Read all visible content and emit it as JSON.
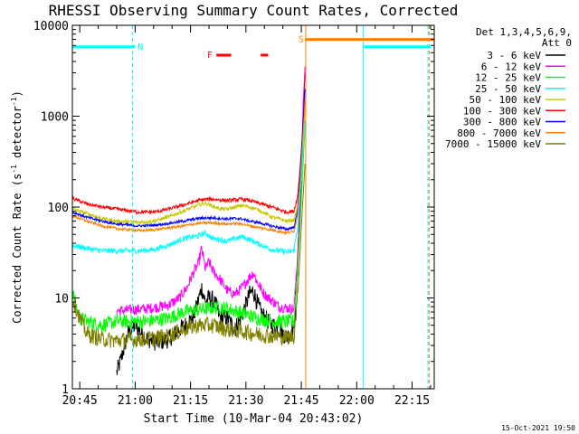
{
  "chart_data": {
    "type": "line",
    "title": "RHESSI Observing Summary Count Rates, Corrected",
    "xlabel": "Start Time (10-Mar-04 20:43:02)",
    "ylabel_main": "Corrected Count Rate (s",
    "ylabel_sup1": "-1",
    "ylabel_mid": " detector",
    "ylabel_sup2": "-1",
    "ylabel_end": ")",
    "timestamp": "15-Oct-2021 19:50",
    "detector_text": [
      "Det 1,3,4,5,6,9,",
      "Att 0"
    ],
    "yscale": "log",
    "ylim": [
      1,
      10000
    ],
    "xlim_minutes": [
      0,
      98
    ],
    "x_ticks": [
      {
        "label": "20:45",
        "min": 2
      },
      {
        "label": "21:00",
        "min": 17
      },
      {
        "label": "21:15",
        "min": 32
      },
      {
        "label": "21:30",
        "min": 47
      },
      {
        "label": "21:45",
        "min": 62
      },
      {
        "label": "22:00",
        "min": 77
      },
      {
        "label": "22:15",
        "min": 92
      }
    ],
    "y_ticks": [
      {
        "label": "10000",
        "v": 10000
      },
      {
        "label": "1000",
        "v": 1000
      },
      {
        "label": "100",
        "v": 100
      },
      {
        "label": "10",
        "v": 10
      },
      {
        "label": "1",
        "v": 1
      }
    ],
    "series": [
      {
        "name": "3 - 6 keV",
        "color": "#000000",
        "noise": 0.1,
        "start": 12,
        "points": [
          [
            12,
            1.5
          ],
          [
            13,
            2
          ],
          [
            15,
            4
          ],
          [
            17,
            5
          ],
          [
            20,
            3.6
          ],
          [
            23,
            3.2
          ],
          [
            26,
            3.5
          ],
          [
            29,
            4.5
          ],
          [
            31,
            5.2
          ],
          [
            33,
            6.5
          ],
          [
            34,
            9
          ],
          [
            35,
            13
          ],
          [
            36,
            9
          ],
          [
            37,
            10
          ],
          [
            38,
            9.5
          ],
          [
            39,
            8
          ],
          [
            40,
            6
          ],
          [
            42,
            6
          ],
          [
            44,
            4.5
          ],
          [
            46,
            6.5
          ],
          [
            48,
            11
          ],
          [
            49,
            12
          ],
          [
            50,
            9
          ],
          [
            51,
            7
          ],
          [
            53,
            5.5
          ],
          [
            56,
            4.5
          ],
          [
            58,
            3.7
          ],
          [
            60,
            4.5
          ],
          [
            61,
            20
          ],
          [
            62,
            180
          ],
          [
            62.5,
            1200
          ],
          [
            63,
            3000
          ]
        ]
      },
      {
        "name": "6 - 12 keV",
        "color": "#ff00ff",
        "noise": 0.06,
        "start": 12,
        "points": [
          [
            12,
            7.2
          ],
          [
            20,
            7.6
          ],
          [
            26,
            8.3
          ],
          [
            29,
            10
          ],
          [
            31,
            13
          ],
          [
            33,
            20
          ],
          [
            34,
            23
          ],
          [
            35,
            35
          ],
          [
            36,
            21
          ],
          [
            37,
            25
          ],
          [
            38,
            20
          ],
          [
            40,
            16
          ],
          [
            42,
            12
          ],
          [
            44,
            11
          ],
          [
            46,
            13
          ],
          [
            48,
            17
          ],
          [
            49,
            19
          ],
          [
            50,
            15
          ],
          [
            52,
            11
          ],
          [
            56,
            8
          ],
          [
            60,
            7.5
          ],
          [
            61,
            30
          ],
          [
            62,
            250
          ],
          [
            62.5,
            1400
          ],
          [
            63,
            3500
          ]
        ]
      },
      {
        "name": "12 - 25 keV",
        "color": "#00ff00",
        "noise": 0.08,
        "start": 0,
        "points": [
          [
            0,
            12
          ],
          [
            1,
            8
          ],
          [
            2,
            6
          ],
          [
            4,
            5.5
          ],
          [
            8,
            5
          ],
          [
            12,
            5.5
          ],
          [
            20,
            5.5
          ],
          [
            26,
            6
          ],
          [
            30,
            7
          ],
          [
            35,
            7.5
          ],
          [
            40,
            8
          ],
          [
            45,
            7
          ],
          [
            50,
            6
          ],
          [
            55,
            5.5
          ],
          [
            60,
            5.5
          ],
          [
            61,
            20
          ],
          [
            62,
            120
          ],
          [
            63,
            800
          ]
        ]
      },
      {
        "name": "25 - 50 keV",
        "color": "#00ffff",
        "noise": 0.03,
        "start": 0,
        "points": [
          [
            0,
            38
          ],
          [
            4,
            35
          ],
          [
            8,
            33
          ],
          [
            12,
            33
          ],
          [
            18,
            33
          ],
          [
            22,
            34
          ],
          [
            26,
            38
          ],
          [
            30,
            45
          ],
          [
            34,
            48
          ],
          [
            36,
            52
          ],
          [
            38,
            45
          ],
          [
            40,
            44
          ],
          [
            42,
            42
          ],
          [
            44,
            45
          ],
          [
            46,
            47
          ],
          [
            48,
            44
          ],
          [
            50,
            40
          ],
          [
            54,
            34
          ],
          [
            58,
            32
          ],
          [
            60,
            33
          ],
          [
            61,
            60
          ],
          [
            62,
            200
          ],
          [
            63,
            900
          ]
        ]
      },
      {
        "name": "50 - 100 keV",
        "color": "#c8c800",
        "noise": 0.02,
        "start": 0,
        "points": [
          [
            0,
            95
          ],
          [
            4,
            85
          ],
          [
            8,
            75
          ],
          [
            12,
            70
          ],
          [
            18,
            68
          ],
          [
            22,
            70
          ],
          [
            26,
            78
          ],
          [
            30,
            90
          ],
          [
            34,
            105
          ],
          [
            36,
            110
          ],
          [
            38,
            102
          ],
          [
            40,
            96
          ],
          [
            42,
            95
          ],
          [
            44,
            100
          ],
          [
            46,
            104
          ],
          [
            48,
            100
          ],
          [
            50,
            95
          ],
          [
            54,
            78
          ],
          [
            58,
            70
          ],
          [
            60,
            72
          ],
          [
            61,
            100
          ],
          [
            62,
            300
          ],
          [
            63,
            1200
          ]
        ]
      },
      {
        "name": "100 - 300 keV",
        "color": "#ff0000",
        "noise": 0.02,
        "start": 0,
        "points": [
          [
            0,
            125
          ],
          [
            4,
            108
          ],
          [
            8,
            100
          ],
          [
            12,
            95
          ],
          [
            18,
            88
          ],
          [
            22,
            88
          ],
          [
            26,
            95
          ],
          [
            30,
            105
          ],
          [
            34,
            118
          ],
          [
            36,
            122
          ],
          [
            38,
            122
          ],
          [
            40,
            120
          ],
          [
            42,
            118
          ],
          [
            44,
            120
          ],
          [
            46,
            122
          ],
          [
            48,
            118
          ],
          [
            50,
            112
          ],
          [
            54,
            100
          ],
          [
            58,
            88
          ],
          [
            60,
            90
          ],
          [
            61,
            130
          ],
          [
            62,
            400
          ],
          [
            63,
            1500
          ]
        ]
      },
      {
        "name": "300 - 800 keV",
        "color": "#0000ff",
        "noise": 0.015,
        "start": 0,
        "points": [
          [
            0,
            88
          ],
          [
            4,
            77
          ],
          [
            8,
            70
          ],
          [
            12,
            65
          ],
          [
            18,
            62
          ],
          [
            22,
            63
          ],
          [
            26,
            66
          ],
          [
            30,
            70
          ],
          [
            34,
            75
          ],
          [
            36,
            76
          ],
          [
            38,
            76
          ],
          [
            40,
            75
          ],
          [
            42,
            74
          ],
          [
            44,
            75
          ],
          [
            46,
            74
          ],
          [
            48,
            70
          ],
          [
            50,
            68
          ],
          [
            54,
            62
          ],
          [
            58,
            57
          ],
          [
            60,
            60
          ],
          [
            61,
            90
          ],
          [
            62,
            400
          ],
          [
            63,
            2000
          ]
        ]
      },
      {
        "name": "800 - 7000 keV",
        "color": "#ff8000",
        "noise": 0.015,
        "start": 0,
        "points": [
          [
            0,
            80
          ],
          [
            4,
            70
          ],
          [
            8,
            62
          ],
          [
            12,
            58
          ],
          [
            18,
            55
          ],
          [
            22,
            56
          ],
          [
            26,
            59
          ],
          [
            30,
            62
          ],
          [
            34,
            66
          ],
          [
            36,
            67
          ],
          [
            38,
            67
          ],
          [
            40,
            66
          ],
          [
            42,
            65
          ],
          [
            44,
            66
          ],
          [
            46,
            65
          ],
          [
            48,
            62
          ],
          [
            50,
            60
          ],
          [
            54,
            56
          ],
          [
            58,
            52
          ],
          [
            60,
            54
          ],
          [
            61,
            80
          ],
          [
            62,
            300
          ],
          [
            63,
            1500
          ]
        ]
      },
      {
        "name": "7000 - 15000 keV",
        "color": "#808000",
        "noise": 0.09,
        "start": 0,
        "points": [
          [
            0,
            10
          ],
          [
            2,
            6
          ],
          [
            4,
            4
          ],
          [
            8,
            3.5
          ],
          [
            12,
            3.4
          ],
          [
            18,
            3.5
          ],
          [
            22,
            3.6
          ],
          [
            26,
            3.8
          ],
          [
            30,
            4.5
          ],
          [
            34,
            5
          ],
          [
            38,
            5
          ],
          [
            42,
            4.5
          ],
          [
            46,
            4.3
          ],
          [
            50,
            4
          ],
          [
            54,
            3.8
          ],
          [
            58,
            3.7
          ],
          [
            60,
            3.8
          ],
          [
            61,
            10
          ],
          [
            62,
            60
          ],
          [
            63,
            300
          ]
        ]
      }
    ],
    "flags": {
      "N_label": "N",
      "F_label": "F",
      "S_label": "S",
      "N_bar": {
        "x0": 0,
        "x1": 17,
        "y": 5800,
        "color": "#00ffff"
      },
      "N_bar2": {
        "x0": 79,
        "x1": 97,
        "y": 5800,
        "color": "#00ffff"
      },
      "S_bar": {
        "x0": 63,
        "x1": 98,
        "y": 7000,
        "color": "#ff8000"
      },
      "F_segments": [
        {
          "x0": 39,
          "x1": 43
        },
        {
          "x0": 51,
          "x1": 53
        }
      ],
      "F_y": 4700,
      "F_color": "#ff0000",
      "vlines": [
        {
          "min": 0,
          "color": "#00ffff",
          "dash": false
        },
        {
          "min": 16.3,
          "color": "#00ffff",
          "dash": true
        },
        {
          "min": 63.2,
          "color": "#ff8000",
          "dash": false
        },
        {
          "min": 78.8,
          "color": "#00ffff",
          "dash": false
        },
        {
          "min": 96.3,
          "color": "#00ffff",
          "dash": true
        },
        {
          "min": 96.6,
          "color": "#ff8000",
          "dash": true
        }
      ]
    }
  }
}
